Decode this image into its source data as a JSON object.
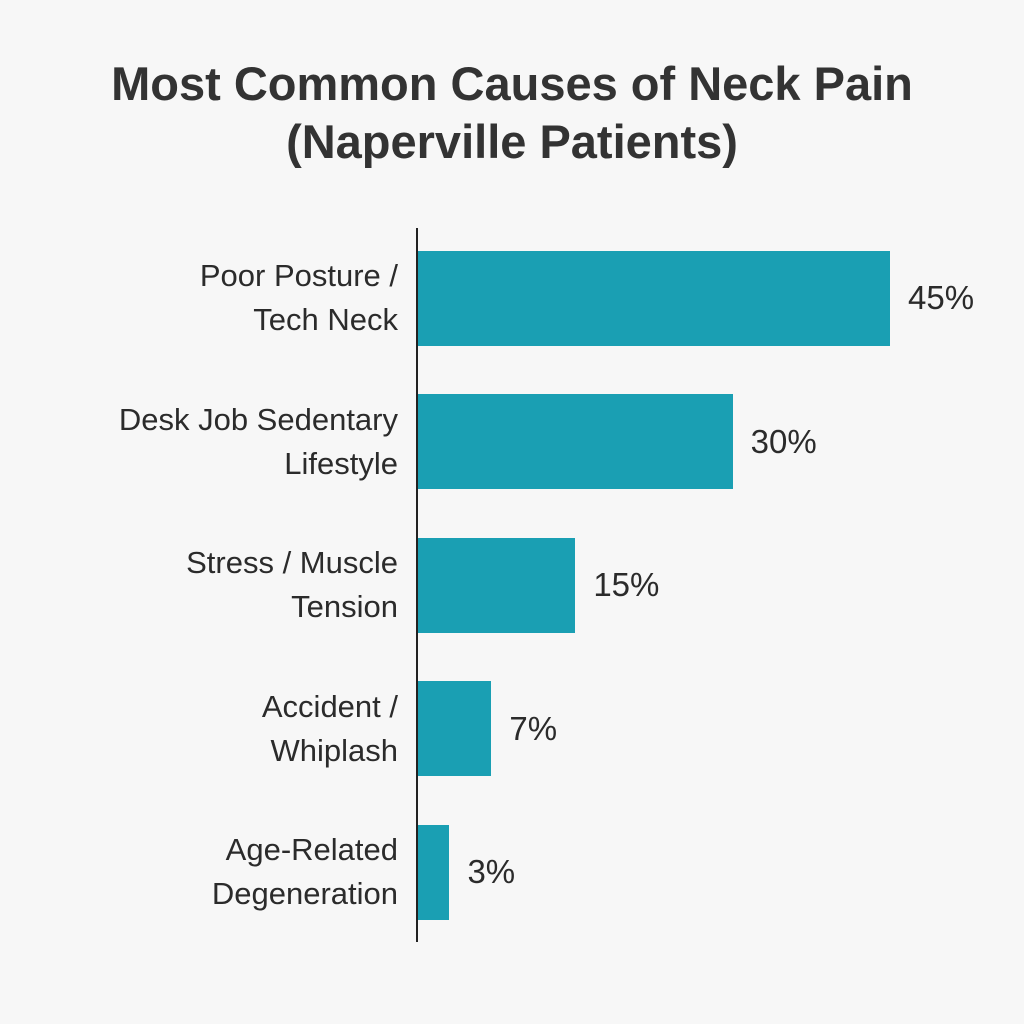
{
  "chart_data": {
    "type": "bar",
    "orientation": "horizontal",
    "title": "Most Common Causes of Neck Pain\n(Naperville Patients)",
    "categories": [
      "Poor Posture /\nTech Neck",
      "Desk Job Sedentary\nLifestyle",
      "Stress / Muscle\nTension",
      "Accident /\nWhiplash",
      "Age-Related\nDegeneration"
    ],
    "values": [
      45,
      30,
      15,
      7,
      3
    ],
    "value_labels": [
      "45%",
      "30%",
      "15%",
      "7%",
      "3%"
    ],
    "color": "#1a9fb3"
  }
}
